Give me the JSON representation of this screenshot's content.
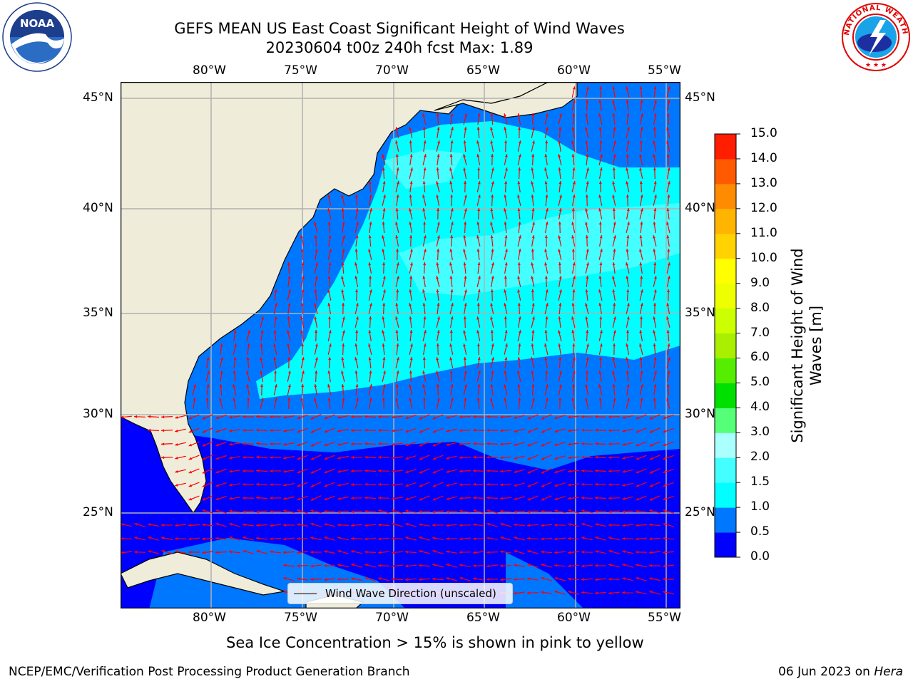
{
  "title": {
    "line1": "GEFS MEAN US East Coast Significant Height of Wind Waves",
    "line2": "20230604 t00z 240h fcst   Max: 1.89"
  },
  "map": {
    "lon_ticks": [
      "80°W",
      "75°W",
      "70°W",
      "65°W",
      "60°W",
      "55°W"
    ],
    "lat_ticks": [
      "45°N",
      "40°N",
      "35°N",
      "30°N",
      "25°N"
    ],
    "lon_range": [
      -85,
      -54.3
    ],
    "lat_range": [
      20.5,
      45.8
    ],
    "grid": true,
    "land_color": "#efedda",
    "arrow_color": "#ff0000",
    "legend_label": "Wind Wave Direction (unscaled)"
  },
  "colorbar": {
    "label": "Significant Height of Wind Waves [m]",
    "label_line1": "Significant Height of Wind",
    "label_line2": "Waves [m]",
    "levels": [
      "0.0",
      "0.5",
      "1.0",
      "1.5",
      "2.0",
      "3.0",
      "4.0",
      "5.0",
      "6.0",
      "7.0",
      "8.0",
      "9.0",
      "10.0",
      "11.0",
      "12.0",
      "13.0",
      "14.0",
      "15.0"
    ],
    "colors": [
      "#0000ff",
      "#0077ff",
      "#00ffff",
      "#44ffff",
      "#aaffff",
      "#55ff77",
      "#00e000",
      "#55ee00",
      "#aaee00",
      "#ccff00",
      "#eeff00",
      "#ffff00",
      "#ffd200",
      "#ffb400",
      "#ff8c00",
      "#ff5a00",
      "#ff1e00"
    ]
  },
  "notes": {
    "sea_ice": "Sea Ice Concentration > 15% is shown in pink to yellow",
    "credit": "NCEP/EMC/Verification Post Processing Product Generation Branch",
    "date": "06 Jun 2023 on ",
    "machine": "Hera"
  },
  "logos": {
    "noaa_text": "NOAA",
    "nws_text": "NATIONAL WEATHER SERVICE"
  }
}
